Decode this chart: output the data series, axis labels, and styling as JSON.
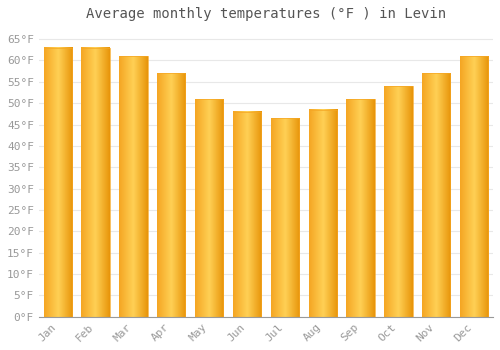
{
  "title": "Average monthly temperatures (°F ) in Levin",
  "months": [
    "Jan",
    "Feb",
    "Mar",
    "Apr",
    "May",
    "Jun",
    "Jul",
    "Aug",
    "Sep",
    "Oct",
    "Nov",
    "Dec"
  ],
  "values": [
    63,
    63,
    61,
    57,
    51,
    48,
    46.5,
    48.5,
    51,
    54,
    57,
    61
  ],
  "bar_color_left": "#F5A623",
  "bar_color_center": "#FFD055",
  "bar_color_right": "#E8950A",
  "ylim": [
    0,
    68
  ],
  "yticks": [
    0,
    5,
    10,
    15,
    20,
    25,
    30,
    35,
    40,
    45,
    50,
    55,
    60,
    65
  ],
  "ytick_labels": [
    "0°F",
    "5°F",
    "10°F",
    "15°F",
    "20°F",
    "25°F",
    "30°F",
    "35°F",
    "40°F",
    "45°F",
    "50°F",
    "55°F",
    "60°F",
    "65°F"
  ],
  "background_color": "#ffffff",
  "plot_bg_color": "#ffffff",
  "grid_color": "#e8e8e8",
  "title_fontsize": 10,
  "tick_fontsize": 8,
  "tick_color": "#999999",
  "font_family": "monospace"
}
